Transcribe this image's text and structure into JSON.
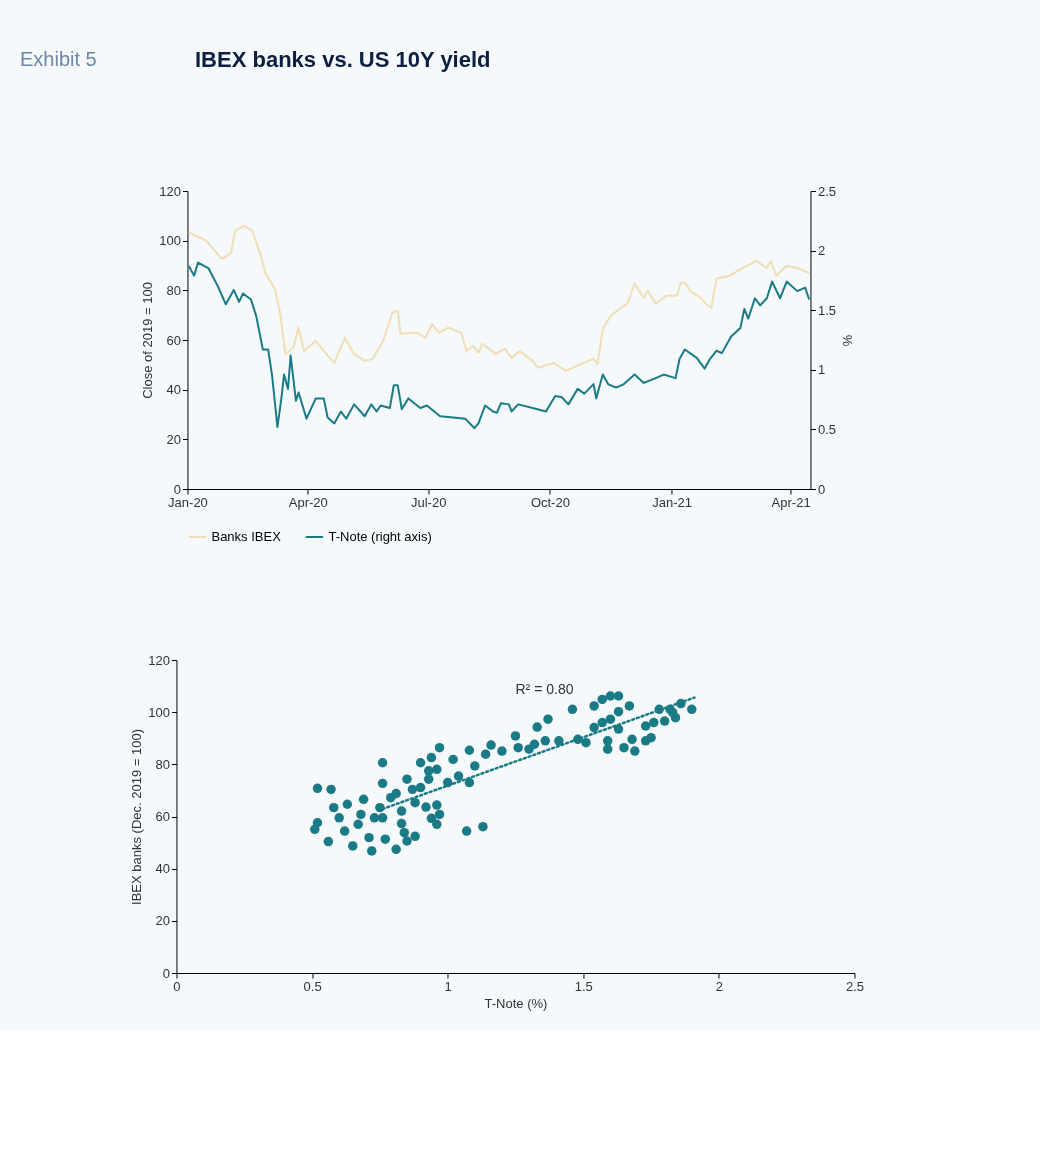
{
  "chart_data": [
    {
      "type": "line",
      "title": "IBEX banks vs. US 10Y yield",
      "annotations": [
        "Exhibit 5"
      ],
      "ylabel": "Close of 2019 = 100",
      "y2label": "%",
      "xlim": [
        "2020-01-01",
        "2021-04-16"
      ],
      "xticks": [
        {
          "value": "2020-01-01",
          "label": "Jan-20"
        },
        {
          "value": "2020-04-01",
          "label": "Apr-20"
        },
        {
          "value": "2020-07-01",
          "label": "Jul-20"
        },
        {
          "value": "2020-10-01",
          "label": "Oct-20"
        },
        {
          "value": "2021-01-01",
          "label": "Jan-21"
        },
        {
          "value": "2021-04-01",
          "label": "Apr-21"
        }
      ],
      "ylim": [
        0,
        120
      ],
      "yticks": [
        0,
        20,
        40,
        60,
        80,
        100,
        120
      ],
      "y2lim": [
        0,
        2.5
      ],
      "y2ticks": [
        0,
        0.5,
        1,
        1.5,
        2,
        2.5
      ],
      "grid": false,
      "legend": "bottom",
      "series": [
        {
          "name": "Banks IBEX",
          "color": "#f0deb4",
          "x": [
            "2020-01-02",
            "2020-01-15",
            "2020-01-27",
            "2020-02-03",
            "2020-02-06",
            "2020-02-13",
            "2020-02-19",
            "2020-02-25",
            "2020-02-29",
            "2020-03-07",
            "2020-03-11",
            "2020-03-15",
            "2020-03-21",
            "2020-03-25",
            "2020-03-29",
            "2020-04-07",
            "2020-04-16",
            "2020-04-21",
            "2020-04-29",
            "2020-05-06",
            "2020-05-14",
            "2020-05-20",
            "2020-05-28",
            "2020-06-04",
            "2020-06-08",
            "2020-06-10",
            "2020-06-23",
            "2020-06-29",
            "2020-07-04",
            "2020-07-09",
            "2020-07-16",
            "2020-07-26",
            "2020-07-30",
            "2020-08-04",
            "2020-08-08",
            "2020-08-11",
            "2020-08-21",
            "2020-08-28",
            "2020-09-02",
            "2020-09-08",
            "2020-09-18",
            "2020-09-22",
            "2020-10-04",
            "2020-10-13",
            "2020-10-25",
            "2020-11-03",
            "2020-11-06",
            "2020-11-10",
            "2020-11-16",
            "2020-11-23",
            "2020-11-29",
            "2020-12-04",
            "2020-12-11",
            "2020-12-14",
            "2020-12-20",
            "2020-12-28",
            "2021-01-05",
            "2021-01-08",
            "2021-01-11",
            "2021-01-15",
            "2021-01-23",
            "2021-01-27",
            "2021-01-31",
            "2021-02-04",
            "2021-02-14",
            "2021-02-24",
            "2021-03-06",
            "2021-03-14",
            "2021-03-17",
            "2021-03-21",
            "2021-03-29",
            "2021-04-06",
            "2021-04-15"
          ],
          "values": [
            103.3,
            100,
            92.7,
            95,
            104,
            106,
            104,
            94.7,
            87,
            80.6,
            71,
            54.4,
            57,
            65,
            55.6,
            59.7,
            53.6,
            50.8,
            60.9,
            54.4,
            51.6,
            52.4,
            59.7,
            71,
            71.8,
            62.5,
            62.9,
            60.9,
            66.5,
            62.9,
            65,
            62.9,
            55.6,
            57.7,
            54.8,
            58.5,
            54.4,
            56.5,
            52.8,
            55.6,
            51.6,
            48.8,
            50.8,
            47.6,
            50.4,
            52.4,
            50.4,
            64.5,
            69.8,
            72.6,
            75,
            82.7,
            77,
            79.8,
            74.6,
            77.8,
            77.8,
            83.1,
            83.1,
            79.8,
            77,
            74.6,
            73,
            84.7,
            85.9,
            89,
            91.9,
            89,
            91.9,
            85.9,
            89.9,
            89,
            87
          ]
        },
        {
          "name": "T-Note (right axis)",
          "color": "#1a7a85",
          "axis": "y2",
          "x": [
            "2020-01-02",
            "2020-01-06",
            "2020-01-09",
            "2020-01-17",
            "2020-01-24",
            "2020-01-30",
            "2020-02-05",
            "2020-02-09",
            "2020-02-12",
            "2020-02-18",
            "2020-02-22",
            "2020-02-27",
            "2020-03-02",
            "2020-03-05",
            "2020-03-09",
            "2020-03-12",
            "2020-03-14",
            "2020-03-17",
            "2020-03-19",
            "2020-03-23",
            "2020-03-25",
            "2020-03-31",
            "2020-04-07",
            "2020-04-13",
            "2020-04-16",
            "2020-04-21",
            "2020-04-26",
            "2020-04-30",
            "2020-05-06",
            "2020-05-14",
            "2020-05-19",
            "2020-05-23",
            "2020-05-26",
            "2020-06-02",
            "2020-06-05",
            "2020-06-08",
            "2020-06-11",
            "2020-06-16",
            "2020-06-25",
            "2020-06-30",
            "2020-07-10",
            "2020-07-20",
            "2020-07-29",
            "2020-08-05",
            "2020-08-08",
            "2020-08-13",
            "2020-08-19",
            "2020-08-22",
            "2020-08-25",
            "2020-08-31",
            "2020-09-02",
            "2020-09-07",
            "2020-09-18",
            "2020-09-28",
            "2020-10-05",
            "2020-10-10",
            "2020-10-15",
            "2020-10-22",
            "2020-10-27",
            "2020-11-03",
            "2020-11-05",
            "2020-11-10",
            "2020-11-14",
            "2020-11-20",
            "2020-11-26",
            "2020-12-04",
            "2020-12-11",
            "2020-12-20",
            "2020-12-26",
            "2021-01-04",
            "2021-01-07",
            "2021-01-11",
            "2021-01-20",
            "2021-01-26",
            "2021-01-30",
            "2021-02-04",
            "2021-02-08",
            "2021-02-15",
            "2021-02-22",
            "2021-02-25",
            "2021-02-28",
            "2021-03-05",
            "2021-03-09",
            "2021-03-14",
            "2021-03-18",
            "2021-03-24",
            "2021-03-29",
            "2021-04-06",
            "2021-04-12",
            "2021-04-15"
          ],
          "values": [
            1.87,
            1.79,
            1.9,
            1.85,
            1.7,
            1.55,
            1.67,
            1.57,
            1.64,
            1.59,
            1.45,
            1.17,
            1.17,
            0.95,
            0.52,
            0.76,
            0.96,
            0.84,
            1.12,
            0.74,
            0.81,
            0.59,
            0.76,
            0.76,
            0.6,
            0.55,
            0.65,
            0.59,
            0.71,
            0.61,
            0.71,
            0.65,
            0.7,
            0.68,
            0.87,
            0.87,
            0.67,
            0.76,
            0.68,
            0.7,
            0.61,
            0.6,
            0.59,
            0.51,
            0.55,
            0.7,
            0.65,
            0.64,
            0.72,
            0.71,
            0.65,
            0.71,
            0.68,
            0.65,
            0.78,
            0.77,
            0.71,
            0.84,
            0.8,
            0.88,
            0.76,
            0.96,
            0.88,
            0.85,
            0.88,
            0.96,
            0.89,
            0.93,
            0.96,
            0.93,
            1.09,
            1.17,
            1.1,
            1.01,
            1.09,
            1.16,
            1.14,
            1.28,
            1.35,
            1.51,
            1.43,
            1.6,
            1.54,
            1.6,
            1.74,
            1.6,
            1.74,
            1.66,
            1.69,
            1.59
          ]
        }
      ]
    },
    {
      "type": "scatter",
      "xlabel": "T-Note (%)",
      "ylabel": "IBEX banks (Dec. 2019 = 100)",
      "xlim": [
        0,
        2.5
      ],
      "xticks": [
        0,
        0.5,
        1,
        1.5,
        2,
        2.5
      ],
      "ylim": [
        0,
        120
      ],
      "yticks": [
        0,
        20,
        40,
        60,
        80,
        100,
        120
      ],
      "grid": false,
      "annotations": [
        "R² = 0.80"
      ],
      "series": [
        {
          "color": "#1a7a85",
          "marker": "circle",
          "x": [
            0.52,
            0.57,
            0.51,
            0.52,
            0.56,
            0.58,
            0.6,
            0.63,
            0.62,
            0.65,
            0.67,
            0.69,
            0.68,
            0.71,
            0.72,
            0.73,
            0.75,
            0.76,
            0.76,
            0.76,
            0.77,
            0.81,
            0.79,
            0.81,
            0.83,
            0.83,
            0.84,
            0.85,
            0.88,
            0.85,
            0.87,
            0.88,
            0.9,
            0.9,
            0.92,
            0.93,
            0.93,
            0.94,
            0.94,
            0.96,
            0.96,
            0.97,
            0.97,
            0.96,
            1.0,
            1.02,
            1.04,
            1.07,
            1.08,
            1.08,
            1.1,
            1.13,
            1.14,
            1.16,
            1.2,
            1.25,
            1.26,
            1.3,
            1.32,
            1.33,
            1.37,
            1.36,
            1.41,
            1.46,
            1.48,
            1.51,
            1.54,
            1.57,
            1.6,
            1.63,
            1.67,
            1.63,
            1.54,
            1.57,
            1.59,
            1.6,
            1.63,
            1.59,
            1.65,
            1.69,
            1.68,
            1.73,
            1.75,
            1.73,
            1.76,
            1.78,
            1.8,
            1.82,
            1.84,
            1.86,
            1.9,
            1.83
          ],
          "values": [
            70.8,
            70.4,
            55.1,
            57.6,
            50.4,
            63.4,
            59.5,
            64.7,
            54.4,
            48.7,
            57.0,
            66.6,
            60.8,
            51.9,
            46.8,
            59.5,
            63.4,
            59.5,
            80.6,
            72.7,
            51.3,
            47.4,
            67.2,
            68.8,
            62.1,
            57.3,
            53.8,
            50.6,
            52.4,
            74.3,
            70.4,
            65.3,
            71.1,
            80.6,
            63.6,
            77.5,
            74.3,
            59.3,
            82.6,
            64.4,
            57.0,
            60.8,
            86.4,
            78.1,
            73.0,
            81.9,
            75.5,
            54.4,
            85.4,
            73.0,
            79.4,
            56.1,
            83.9,
            87.4,
            85.1,
            90.9,
            86.4,
            85.8,
            87.7,
            94.3,
            97.3,
            89.0,
            89.0,
            101.1,
            89.6,
            88.3,
            102.4,
            104.9,
            106.2,
            106.2,
            102.4,
            100.2,
            94.1,
            96.0,
            89.0,
            97.3,
            93.5,
            85.8,
            86.4,
            85.1,
            89.6,
            89.0,
            90.2,
            94.7,
            96.0,
            101.1,
            96.6,
            101.1,
            97.9,
            103.3,
            101.1,
            99.8
          ]
        },
        {
          "type": "line",
          "line_style": "dotted",
          "color": "#1a7a85",
          "x": [
            0.76,
            1.91
          ],
          "values": [
            62.9,
            105.6
          ]
        }
      ]
    }
  ]
}
